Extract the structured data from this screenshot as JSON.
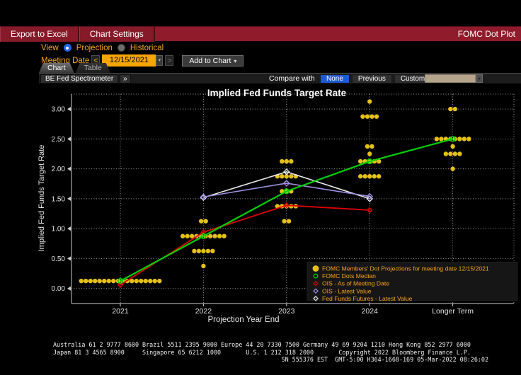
{
  "header": {
    "export_button": "Export to Excel",
    "settings_button": "Chart Settings",
    "app_title": "FOMC Dot Plot"
  },
  "icons": {
    "caret_down": "▾",
    "chevron_left": "<",
    "chevron_right": ">",
    "double_chevron": "»"
  },
  "controls": {
    "view_label": "View",
    "view_options": [
      {
        "label": "Projection",
        "selected": true
      },
      {
        "label": "Historical",
        "selected": false
      }
    ],
    "meeting_date_label": "Meeting Date",
    "meeting_date_value": "12/15/2021",
    "add_to_chart_label": "Add to Chart",
    "tabs": [
      {
        "label": "Chart",
        "active": true
      },
      {
        "label": "Table",
        "active": false
      }
    ]
  },
  "toolbar": {
    "spectrometer_label": "BE Fed Spectrometer",
    "compare_with_label": "Compare with",
    "compare_options": [
      {
        "label": "None",
        "selected": true
      },
      {
        "label": "Previous",
        "selected": false
      },
      {
        "label": "Custom",
        "selected": false
      }
    ]
  },
  "chart_data": {
    "type": "scatter",
    "title": "Implied Fed Funds Target Rate",
    "xlabel": "Projection Year End",
    "ylabel": "Implied Fed Funds Target Rate",
    "categories": [
      "2021",
      "2022",
      "2023",
      "2024",
      "Longer Term"
    ],
    "ylim": [
      -0.25,
      3.25
    ],
    "yticks": [
      0.0,
      0.5,
      1.0,
      1.5,
      2.0,
      2.5,
      3.0
    ],
    "grid": "dotted",
    "dots_color": "#e5c117",
    "dot_groups": [
      {
        "category": "2021",
        "dots": [
          {
            "value": 0.125,
            "count": 18
          }
        ]
      },
      {
        "category": "2022",
        "dots": [
          {
            "value": 1.125,
            "count": 2
          },
          {
            "value": 0.875,
            "count": 10
          },
          {
            "value": 0.625,
            "count": 5
          },
          {
            "value": 0.375,
            "count": 1
          }
        ]
      },
      {
        "category": "2023",
        "dots": [
          {
            "value": 2.125,
            "count": 3
          },
          {
            "value": 1.875,
            "count": 5
          },
          {
            "value": 1.625,
            "count": 3
          },
          {
            "value": 1.375,
            "count": 5
          },
          {
            "value": 1.125,
            "count": 2
          }
        ]
      },
      {
        "category": "2024",
        "dots": [
          {
            "value": 3.125,
            "count": 1
          },
          {
            "value": 2.875,
            "count": 4
          },
          {
            "value": 2.375,
            "count": 2
          },
          {
            "value": 2.25,
            "count": 1
          },
          {
            "value": 2.125,
            "count": 5
          },
          {
            "value": 1.875,
            "count": 5
          }
        ]
      },
      {
        "category": "Longer Term",
        "dots": [
          {
            "value": 3.0,
            "count": 2
          },
          {
            "value": 2.5,
            "count": 8
          },
          {
            "value": 2.375,
            "count": 1
          },
          {
            "value": 2.25,
            "count": 4
          },
          {
            "value": 2.0,
            "count": 1
          }
        ]
      }
    ],
    "series": [
      {
        "name": "OIS - As of Meeting Date",
        "color": "#e00000",
        "width": 1.8,
        "marker": "diamond-open",
        "marker_size": 3.2,
        "points": [
          [
            "2021",
            0.06
          ],
          [
            "2022",
            0.94
          ],
          [
            "2023",
            1.39
          ],
          [
            "2024",
            1.31
          ]
        ]
      },
      {
        "name": "Fed Funds Futures - Latest Value",
        "color": "#e8e8e8",
        "width": 1.6,
        "marker": "diamond-open",
        "marker_size": 3.8,
        "points": [
          [
            "2022",
            1.52
          ],
          [
            "2023",
            1.95
          ],
          [
            "2024",
            1.5
          ]
        ]
      },
      {
        "name": "OIS - Latest Value",
        "color": "#9d8fe0",
        "width": 1.6,
        "marker": "diamond-open",
        "marker_size": 3.8,
        "points": [
          [
            "2022",
            1.53
          ],
          [
            "2023",
            1.76
          ],
          [
            "2024",
            1.54
          ]
        ]
      },
      {
        "name": "FOMC Dots Median",
        "color": "#00d000",
        "width": 2.2,
        "marker": "circle-open",
        "marker_size": 3.3,
        "points": [
          [
            "2021",
            0.125
          ],
          [
            "2022",
            0.875
          ],
          [
            "2023",
            1.625
          ],
          [
            "2024",
            2.125
          ],
          [
            "Longer Term",
            2.5
          ]
        ]
      }
    ],
    "legend": {
      "position": "bottom-right",
      "text_color": "#f7a21a",
      "entries": [
        {
          "marker": "circle-filled",
          "color": "#e5c117",
          "label": "FOMC Members' Dot Projections for meeting date 12/15/2021"
        },
        {
          "marker": "circle-open",
          "color": "#00d000",
          "label": "FOMC Dots Median"
        },
        {
          "marker": "diamond-open",
          "color": "#e00000",
          "label": "OIS - As of Meeting Date"
        },
        {
          "marker": "diamond-open",
          "color": "#9d8fe0",
          "label": "OIS - Latest Value"
        },
        {
          "marker": "diamond-open",
          "color": "#e8e8e8",
          "label": "Fed Funds Futures - Latest Value"
        }
      ]
    }
  },
  "footer": {
    "line1": "Australia 61 2 9777 8600 Brazil 5511 2395 9000 Europe 44 20 7330 7500 Germany 49 69 9204 1210 Hong Kong 852 2977 6000",
    "line2": "Japan 81 3 4565 8900     Singapore 65 6212 1000       U.S. 1 212 318 2000       Copyright 2022 Bloomberg Finance L.P.",
    "line3": "SN 555376 EST  GMT-5:00 H364-1668-169 05-Mar-2022 08:26:02"
  }
}
